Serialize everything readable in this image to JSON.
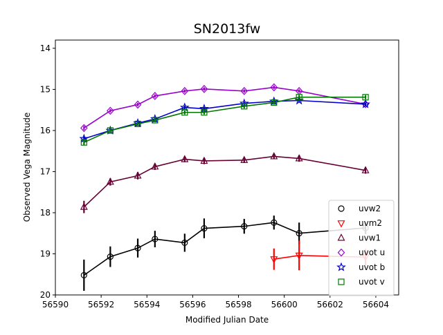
{
  "chart_data": {
    "type": "line",
    "title": "SN2013fw",
    "xlabel": "Modified Julian Date",
    "ylabel": "Observed Vega Magnitude",
    "xlim": [
      56590,
      56605
    ],
    "ylim": [
      20,
      13.8
    ],
    "y_inverted": true,
    "grid": false,
    "legend_position": "lower-right",
    "x_ticks": [
      56590,
      56592,
      56594,
      56596,
      56598,
      56600,
      56602,
      56604
    ],
    "y_ticks": [
      14,
      15,
      16,
      17,
      18,
      19,
      20
    ],
    "series": [
      {
        "name": "uvw2",
        "marker": "circle",
        "color": "#000000",
        "x": [
          56591.25,
          56592.4,
          56593.6,
          56594.35,
          56595.65,
          56596.5,
          56598.25,
          56599.55,
          56600.65,
          56603.55
        ],
        "y": [
          19.52,
          19.07,
          18.86,
          18.64,
          18.73,
          18.38,
          18.33,
          18.24,
          18.5,
          18.37
        ],
        "err": [
          0.38,
          0.25,
          0.23,
          0.2,
          0.22,
          0.24,
          0.18,
          0.17,
          0.26,
          0.15
        ]
      },
      {
        "name": "uvm2",
        "marker": "triangle-down",
        "color": "#ff0000",
        "x": [
          56599.55,
          56600.65,
          56603.55
        ],
        "y": [
          19.13,
          19.04,
          19.08
        ],
        "err": [
          0.26,
          0.36,
          0.2
        ]
      },
      {
        "name": "uvw1",
        "marker": "triangle-up",
        "color": "#660033",
        "x": [
          56591.25,
          56592.4,
          56593.6,
          56594.35,
          56595.65,
          56596.5,
          56598.25,
          56599.55,
          56600.65,
          56603.55
        ],
        "y": [
          17.86,
          17.25,
          17.1,
          16.88,
          16.7,
          16.74,
          16.72,
          16.63,
          16.68,
          16.97
        ],
        "err": [
          0.15,
          0.09,
          0.09,
          0.08,
          0.07,
          0.08,
          0.07,
          0.06,
          0.08,
          0.08
        ]
      },
      {
        "name": "uvot u",
        "marker": "diamond",
        "color": "#9900cc",
        "x": [
          56591.25,
          56592.4,
          56593.6,
          56594.35,
          56595.65,
          56596.5,
          56598.25,
          56599.55,
          56600.65,
          56603.55
        ],
        "y": [
          15.94,
          15.52,
          15.37,
          15.16,
          15.04,
          14.99,
          15.04,
          14.95,
          15.04,
          15.36
        ],
        "err": [
          0.05,
          0.04,
          0.04,
          0.04,
          0.04,
          0.04,
          0.04,
          0.04,
          0.04,
          0.04
        ]
      },
      {
        "name": "uvot b",
        "marker": "star",
        "color": "#0000cc",
        "x": [
          56591.25,
          56592.4,
          56593.6,
          56594.35,
          56595.65,
          56596.5,
          56598.25,
          56599.55,
          56600.65,
          56603.55
        ],
        "y": [
          16.2,
          16.0,
          15.82,
          15.72,
          15.44,
          15.47,
          15.34,
          15.29,
          15.27,
          15.36
        ],
        "err": [
          0.05,
          0.04,
          0.04,
          0.04,
          0.04,
          0.04,
          0.04,
          0.04,
          0.04,
          0.04
        ]
      },
      {
        "name": "uvot v",
        "marker": "square",
        "color": "#007700",
        "x": [
          56591.25,
          56592.4,
          56593.6,
          56594.35,
          56595.65,
          56596.5,
          56598.25,
          56599.55,
          56600.65,
          56603.55
        ],
        "y": [
          16.29,
          16.0,
          15.84,
          15.75,
          15.56,
          15.56,
          15.41,
          15.32,
          15.19,
          15.19
        ],
        "err": [
          0.06,
          0.05,
          0.05,
          0.05,
          0.05,
          0.05,
          0.05,
          0.05,
          0.05,
          0.05
        ]
      }
    ]
  }
}
